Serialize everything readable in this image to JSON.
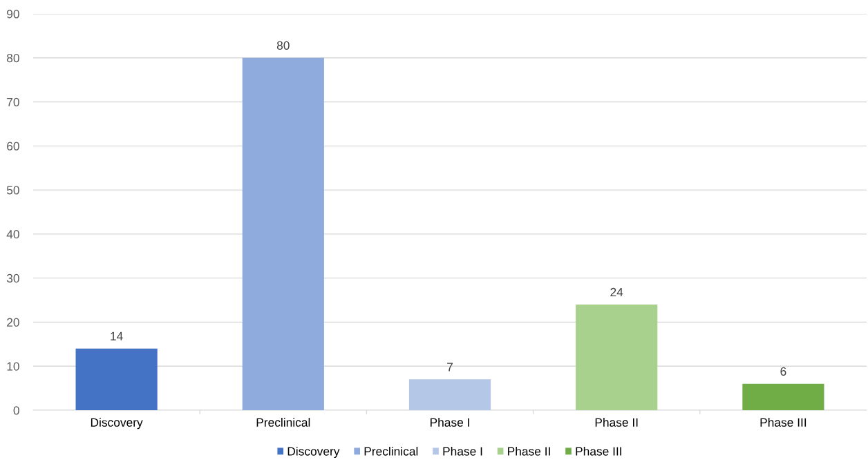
{
  "chart_data": {
    "type": "bar",
    "categories": [
      "Discovery",
      "Preclinical",
      "Phase I",
      "Phase II",
      "Phase III"
    ],
    "series": [
      {
        "name": "Discovery",
        "color": "#4472c4",
        "values": [
          14,
          null,
          null,
          null,
          null
        ]
      },
      {
        "name": "Preclinical",
        "color": "#8faadc",
        "values": [
          null,
          80,
          null,
          null,
          null
        ]
      },
      {
        "name": "Phase I",
        "color": "#b4c7e7",
        "values": [
          null,
          null,
          7,
          null,
          null
        ]
      },
      {
        "name": "Phase II",
        "color": "#a9d18e",
        "values": [
          null,
          null,
          null,
          24,
          null
        ]
      },
      {
        "name": "Phase III",
        "color": "#70ad47",
        "values": [
          null,
          null,
          null,
          null,
          6
        ]
      }
    ],
    "ylim": [
      0,
      90
    ],
    "yticks": [
      0,
      10,
      20,
      30,
      40,
      50,
      60,
      70,
      80,
      90
    ],
    "grid": "y",
    "legend": "bottom",
    "data_labels": true
  }
}
